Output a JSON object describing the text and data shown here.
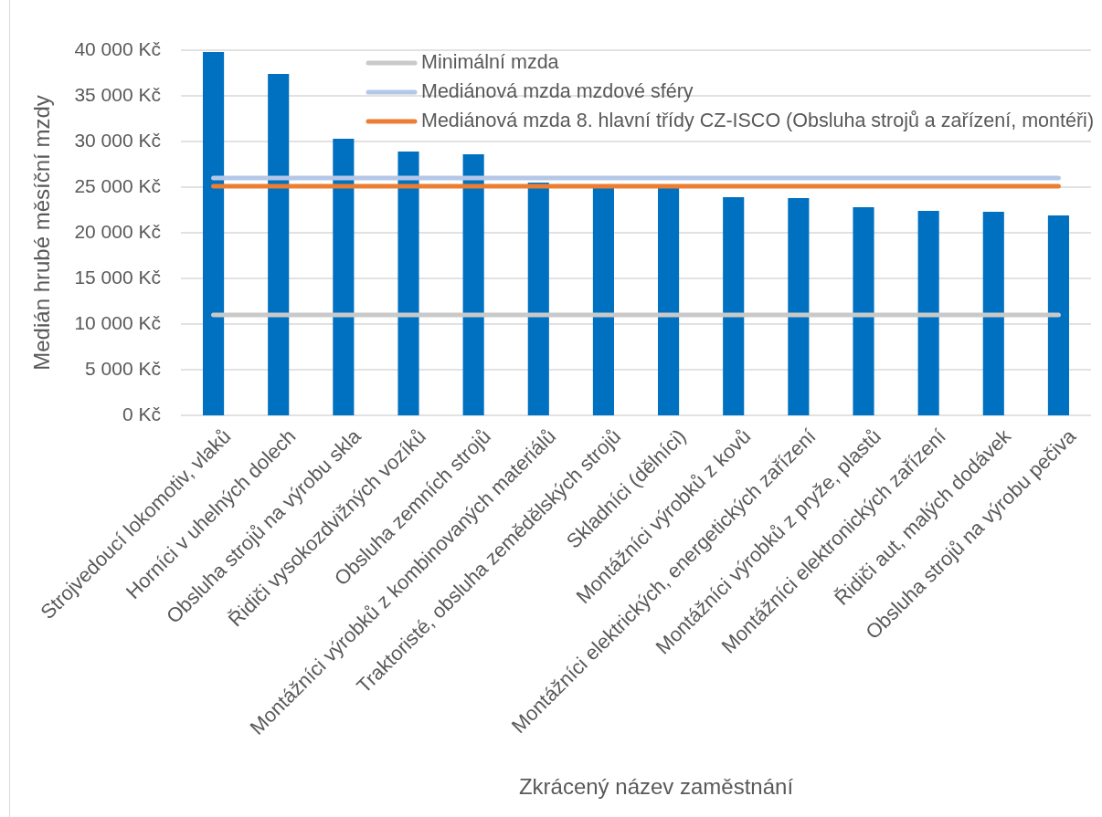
{
  "chart_data": {
    "type": "bar",
    "categories": [
      "Strojvedoucí lokomotiv, vlaků",
      "Horníci v uhelných dolech",
      "Obsluha strojů na výrobu skla",
      "Řidiči vysokozdvižných vozíků",
      "Obsluha zemních strojů",
      "Montážníci výrobků z kombinovaných materiálů",
      "Traktoristé, obsluha zemědělských strojů",
      "Skladníci (dělníci)",
      "Montážníci výrobků z kovů",
      "Montážníci elektrických, energetických zařízení",
      "Montážníci výrobků z pryže, plastů",
      "Montážníci elektronických zařízení",
      "Řidiči aut, malých dodávek",
      "Obsluha strojů na výrobu pečiva"
    ],
    "series": [
      {
        "color": "#0070c0",
        "values": [
          39800,
          37400,
          30300,
          28900,
          28600,
          25500,
          25100,
          24900,
          23900,
          23800,
          22800,
          22400,
          22300,
          21900
        ]
      },
      {
        "type": "line",
        "name": "Minimální mzda",
        "color": "#c9c9c9",
        "values": [
          11000,
          11000,
          11000,
          11000,
          11000,
          11000,
          11000,
          11000,
          11000,
          11000,
          11000,
          11000,
          11000,
          11000
        ]
      },
      {
        "type": "line",
        "name": "Mediánová mzda mzdové sféry",
        "color": "#b4c7e7",
        "values": [
          26000,
          26000,
          26000,
          26000,
          26000,
          26000,
          26000,
          26000,
          26000,
          26000,
          26000,
          26000,
          26000,
          26000
        ]
      },
      {
        "type": "line",
        "name": "Mediánová mzda 8. hlavní třídy CZ-ISCO (Obsluha strojů a zařízení, montéři)",
        "color": "#ed7d31",
        "values": [
          25100,
          25100,
          25100,
          25100,
          25100,
          25100,
          25100,
          25100,
          25100,
          25100,
          25100,
          25100,
          25100,
          25100
        ]
      }
    ],
    "ylim": [
      0,
      40000
    ],
    "yticks": [
      {
        "value": 0,
        "label": "0 Kč"
      },
      {
        "value": 5000,
        "label": "5 000 Kč"
      },
      {
        "value": 10000,
        "label": "10 000 Kč"
      },
      {
        "value": 15000,
        "label": "15 000 Kč"
      },
      {
        "value": 20000,
        "label": "20 000 Kč"
      },
      {
        "value": 25000,
        "label": "25 000 Kč"
      },
      {
        "value": 30000,
        "label": "30 000 Kč"
      },
      {
        "value": 35000,
        "label": "35 000 Kč"
      },
      {
        "value": 40000,
        "label": "40 000 Kč"
      }
    ],
    "ylabel": "Medián hrubé měsíční mzdy",
    "xlabel": "Zkrácený název zaměstnání",
    "grid": "y",
    "legend": "top"
  }
}
